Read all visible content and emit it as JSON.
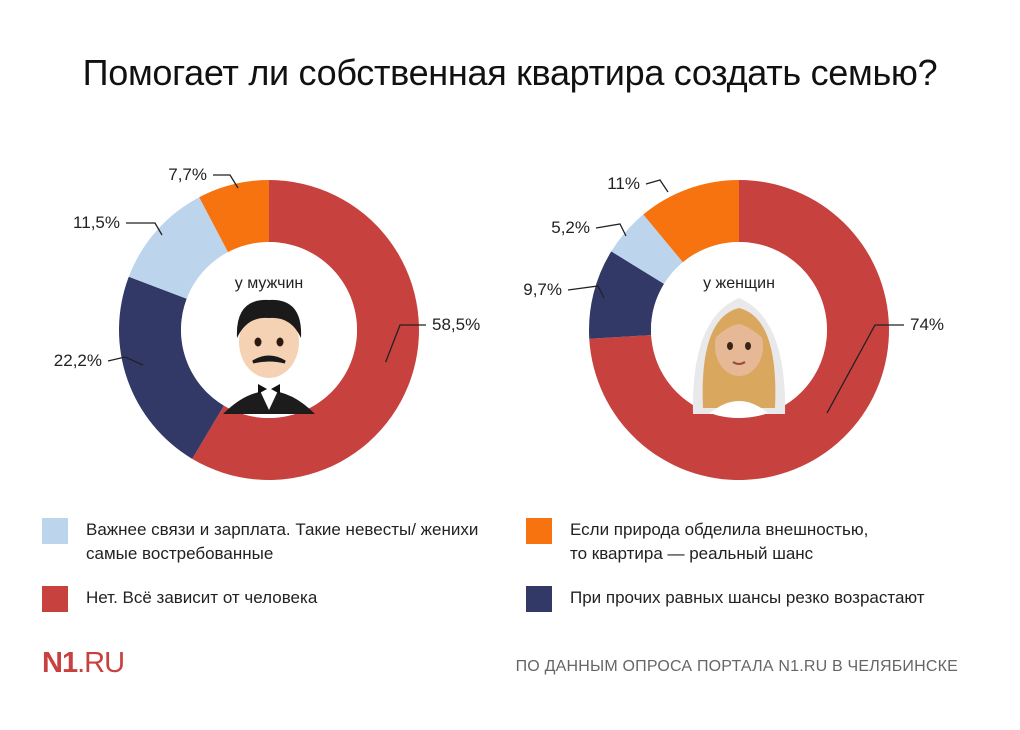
{
  "title": "Помогает ли собственная квартира создать семью?",
  "colors": {
    "light_blue": "#bcd5ec",
    "red": "#c7413f",
    "orange": "#f6730f",
    "navy": "#323966"
  },
  "legend": [
    {
      "key": "light_blue",
      "line1": "Важнее связи и зарплата. Такие невесты/ женихи",
      "line2": "самые востребованные"
    },
    {
      "key": "red",
      "line1": "Нет. Всё зависит от человека",
      "line2": ""
    },
    {
      "key": "orange",
      "line1": "Если природа обделила внешностью,",
      "line2": "то квартира — реальный шанс"
    },
    {
      "key": "navy",
      "line1": "При прочих равных шансы резко возрастают",
      "line2": ""
    }
  ],
  "chart_data": [
    {
      "type": "pie",
      "title": "у мужчин",
      "icon": "groom-emoji",
      "slices": [
        {
          "key": "red",
          "value": 58.5,
          "label": "58,5%"
        },
        {
          "key": "navy",
          "value": 22.2,
          "label": "22,2%"
        },
        {
          "key": "light_blue",
          "value": 11.5,
          "label": "11,5%"
        },
        {
          "key": "orange",
          "value": 7.7,
          "label": "7,7%"
        }
      ]
    },
    {
      "type": "pie",
      "title": "у женщин",
      "icon": "bride-emoji",
      "slices": [
        {
          "key": "red",
          "value": 74,
          "label": "74%"
        },
        {
          "key": "navy",
          "value": 9.7,
          "label": "9,7%"
        },
        {
          "key": "light_blue",
          "value": 5.2,
          "label": "5,2%"
        },
        {
          "key": "orange",
          "value": 11,
          "label": "11%"
        }
      ]
    }
  ],
  "footer": {
    "logo_main": "N1",
    "logo_suffix": ".RU",
    "source": "По данным опроса портала N1.RU в Челябинске"
  }
}
